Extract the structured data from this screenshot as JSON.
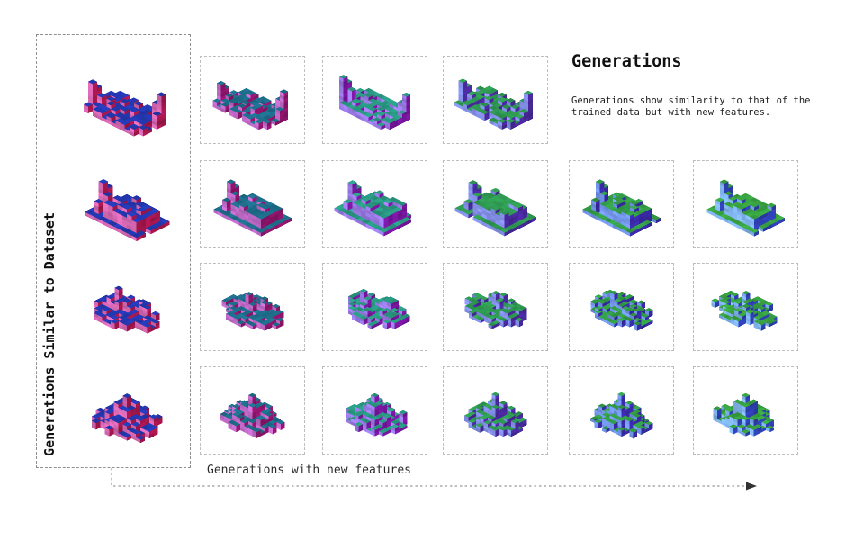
{
  "caption": {
    "title": "Generations",
    "description": "Generations show similarity to that of the trained data but with new features."
  },
  "labels": {
    "y_axis": "Generations Similar to Dataset",
    "x_axis": "Generations with new features"
  },
  "colors": {
    "background": "#ffffff",
    "dataset_box_border": "#8f8f8f",
    "cell_border": "#bdbdbd",
    "axis_line": "#9b9b9b",
    "arrowhead": "#333333",
    "text": "#111111"
  },
  "palettes": {
    "dataset": {
      "light": "#d667b2",
      "dark": "#a8174e",
      "top": "#2438b2"
    },
    "col1": {
      "light": "#c06ac8",
      "dark": "#92156e",
      "top": "#1e6e8c"
    },
    "col2": {
      "light": "#9a7ae6",
      "dark": "#7a16a2",
      "top": "#2a9a84"
    },
    "col3": {
      "light": "#8490e8",
      "dark": "#4a2aa0",
      "top": "#2f9a52"
    },
    "col4": {
      "light": "#7396ea",
      "dark": "#3a2aaa",
      "top": "#339e48"
    },
    "col5": {
      "light": "#7fb2ec",
      "dark": "#2f40b4",
      "top": "#38a342"
    }
  },
  "voxels": {
    "d1": {
      "variant": "twin-towers",
      "palette": "dataset",
      "seed": 101
    },
    "d2": {
      "variant": "slab-tower",
      "palette": "dataset",
      "seed": 102
    },
    "d3": {
      "variant": "wide-complex",
      "palette": "dataset",
      "seed": 103
    },
    "d4": {
      "variant": "spire-castle",
      "palette": "dataset",
      "seed": 104
    },
    "r1c1": {
      "variant": "twin-towers",
      "palette": "col1",
      "seed": 211
    },
    "r1c2": {
      "variant": "twin-towers",
      "palette": "col2",
      "seed": 212
    },
    "r1c3": {
      "variant": "twin-towers",
      "palette": "col3",
      "seed": 213
    },
    "r2c1": {
      "variant": "slab-tower",
      "palette": "col1",
      "seed": 321
    },
    "r2c2": {
      "variant": "slab-tower",
      "palette": "col2",
      "seed": 322
    },
    "r2c3": {
      "variant": "slab-tower",
      "palette": "col3",
      "seed": 323
    },
    "r2c4": {
      "variant": "slab-tower",
      "palette": "col4",
      "seed": 324
    },
    "r2c5": {
      "variant": "slab-tower",
      "palette": "col5",
      "seed": 325
    },
    "r3c1": {
      "variant": "wide-complex",
      "palette": "col1",
      "seed": 431
    },
    "r3c2": {
      "variant": "wide-complex",
      "palette": "col2",
      "seed": 432
    },
    "r3c3": {
      "variant": "wide-complex",
      "palette": "col3",
      "seed": 433
    },
    "r3c4": {
      "variant": "wide-complex",
      "palette": "col4",
      "seed": 434
    },
    "r3c5": {
      "variant": "wide-complex",
      "palette": "col5",
      "seed": 435
    },
    "r4c1": {
      "variant": "spire-castle",
      "palette": "col1",
      "seed": 541
    },
    "r4c2": {
      "variant": "spire-castle",
      "palette": "col2",
      "seed": 542
    },
    "r4c3": {
      "variant": "spire-castle",
      "palette": "col3",
      "seed": 543
    },
    "r4c4": {
      "variant": "spire-castle",
      "palette": "col4",
      "seed": 544
    },
    "r4c5": {
      "variant": "spire-castle",
      "palette": "col5",
      "seed": 545
    }
  }
}
